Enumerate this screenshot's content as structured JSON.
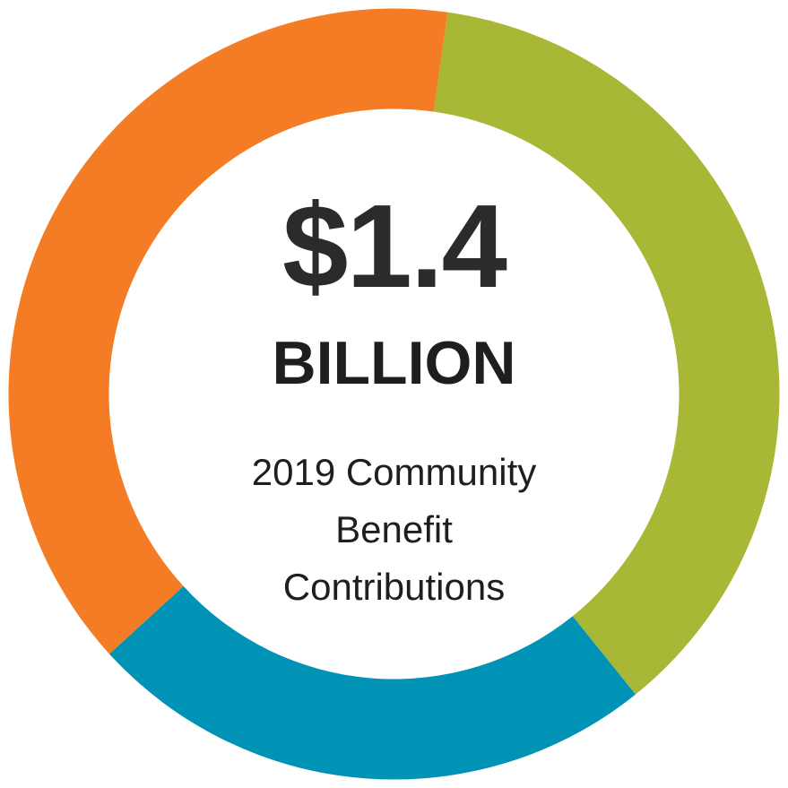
{
  "chart_data": {
    "type": "pie",
    "style": "donut",
    "slices": [
      {
        "value": 0.37,
        "color": "#A9B736"
      },
      {
        "value": 0.24,
        "color": "#0093B5"
      },
      {
        "value": 0.39,
        "color": "#F37C24"
      }
    ]
  },
  "center": {
    "value": "$1.4",
    "unit": "BILLION",
    "caption_lines": [
      "2019 Community",
      "Benefit",
      "Contributions"
    ]
  }
}
